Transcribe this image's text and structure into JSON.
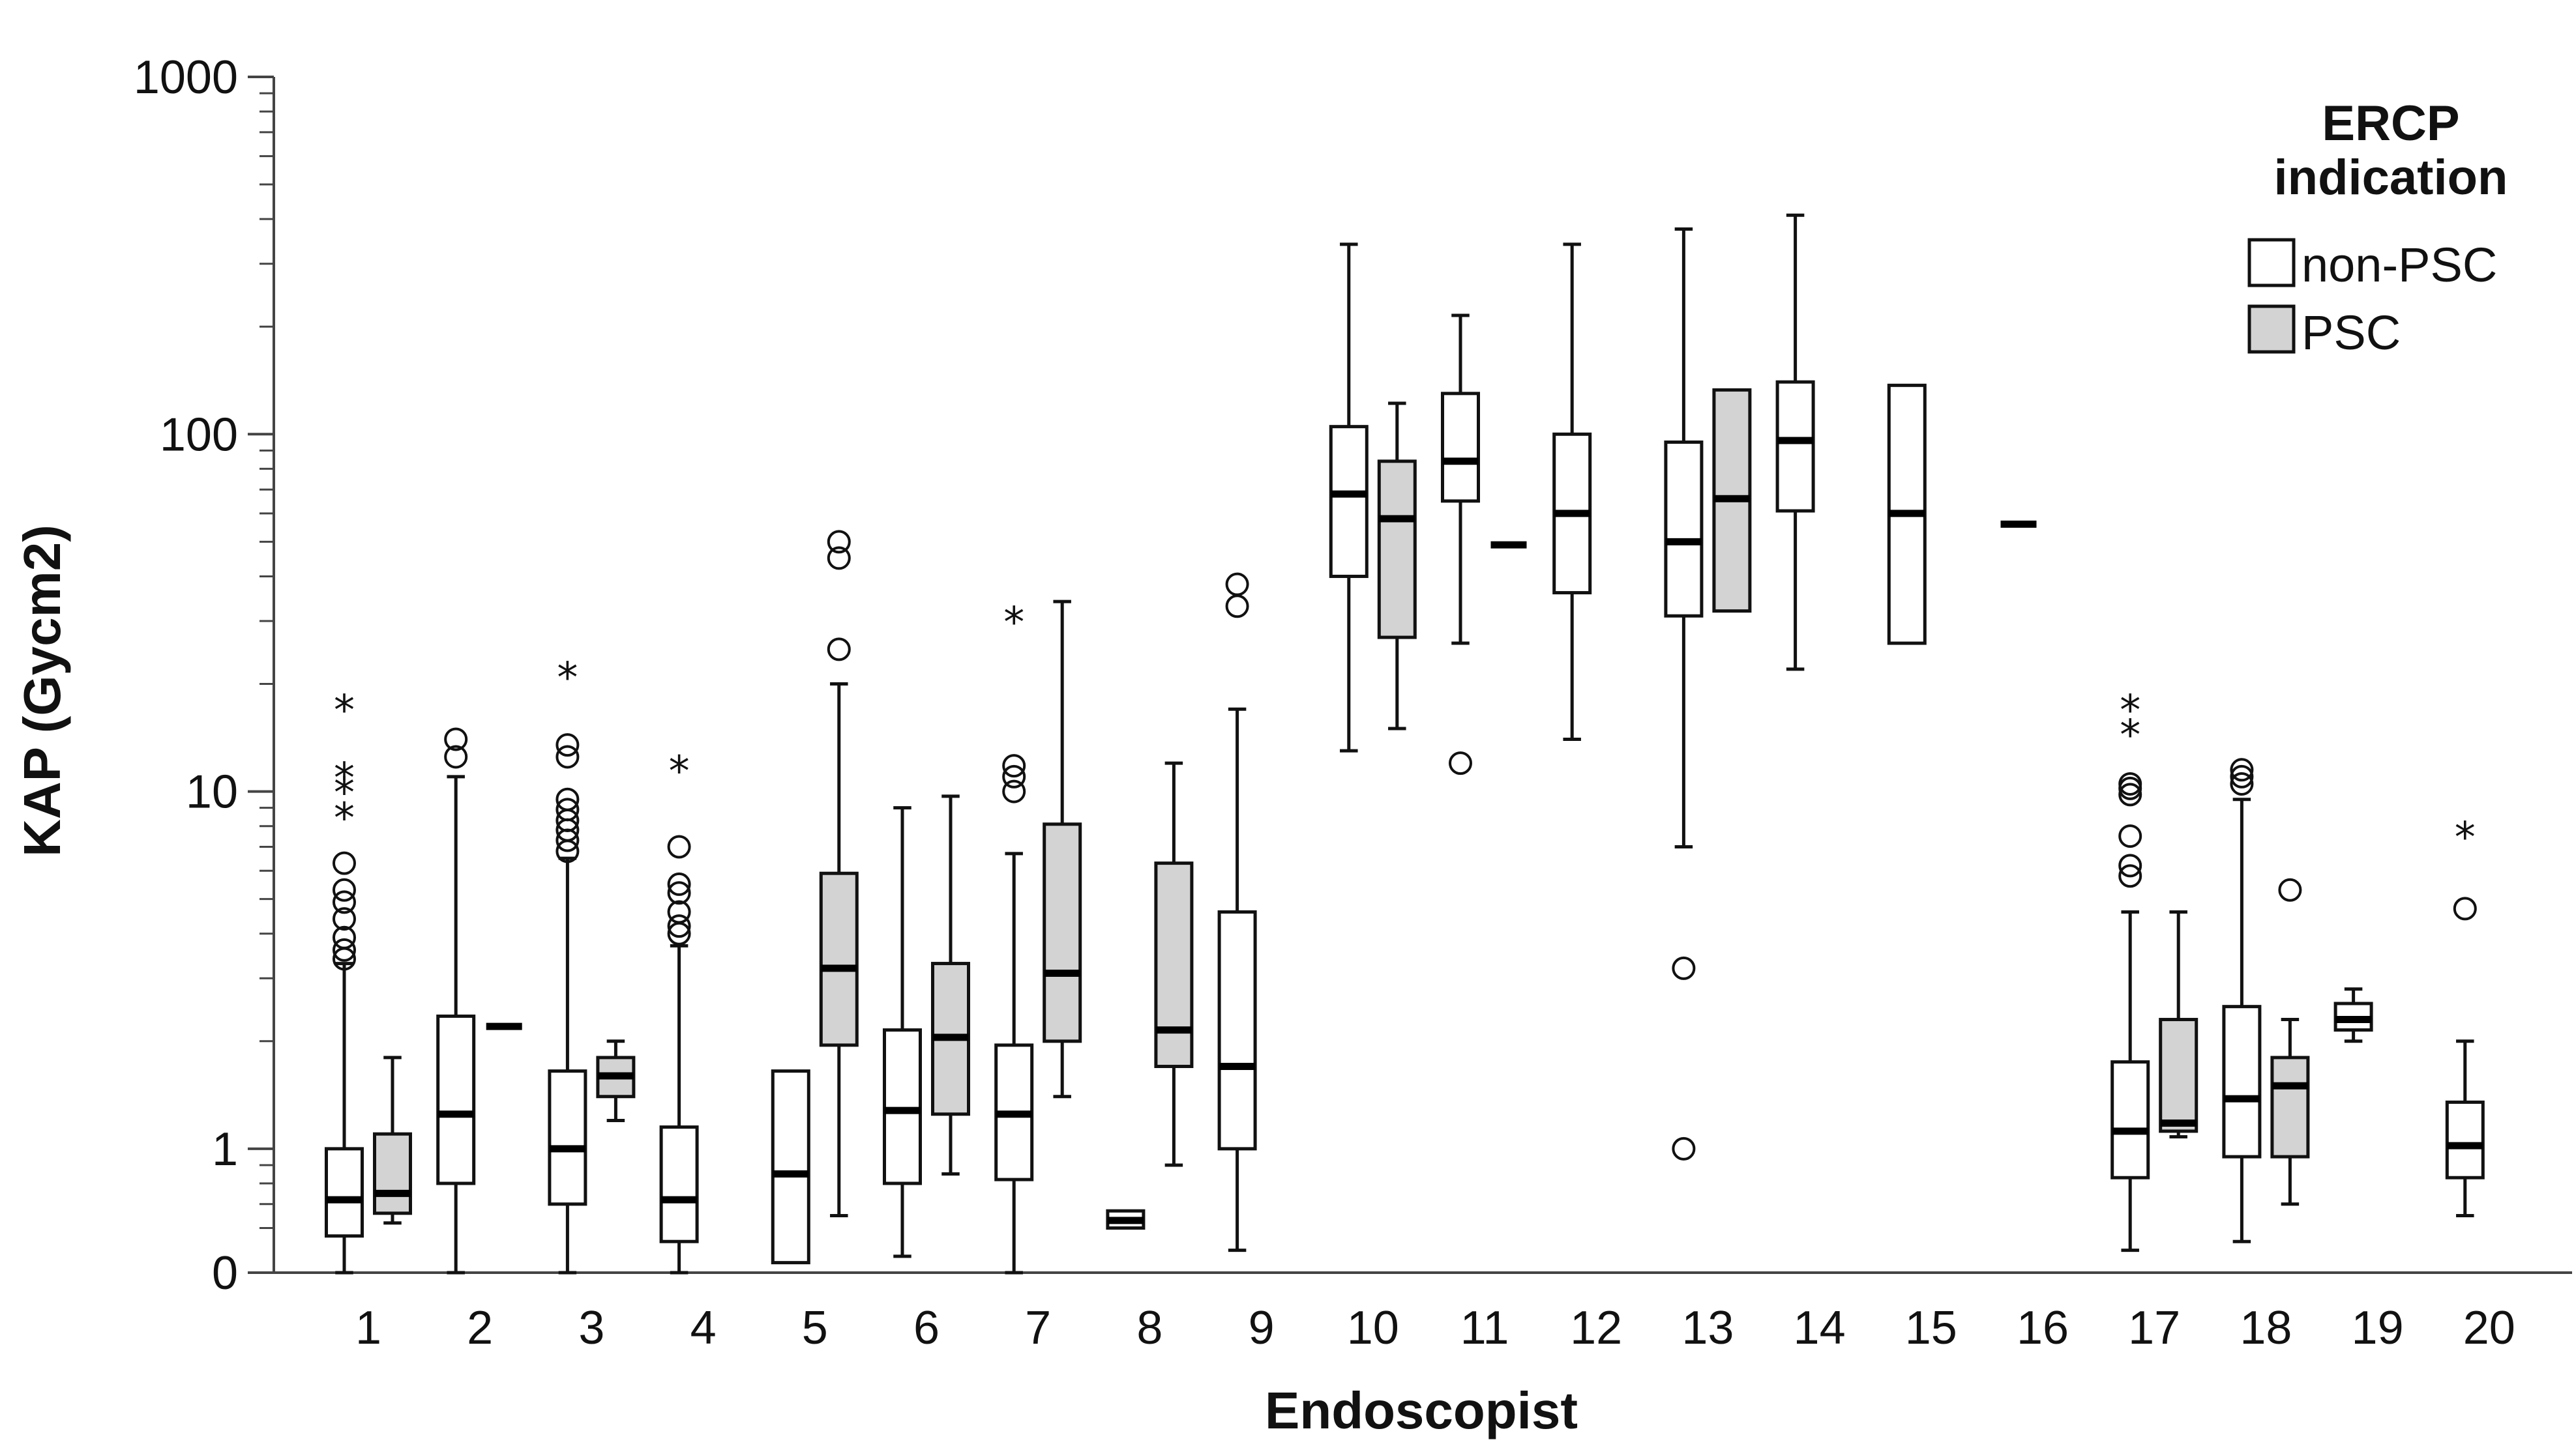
{
  "chart_data": {
    "type": "boxplot",
    "xlabel": "Endoscopist",
    "ylabel": "KAP (Gycm2)",
    "y_scale": "log",
    "ylim": [
      0.45,
      1000
    ],
    "y_ticks": [
      {
        "value": 0.45,
        "label": "0"
      },
      {
        "value": 1,
        "label": "1"
      },
      {
        "value": 10,
        "label": "10"
      },
      {
        "value": 100,
        "label": "100"
      },
      {
        "value": 1000,
        "label": "1000"
      }
    ],
    "categories": [
      "1",
      "2",
      "3",
      "4",
      "5",
      "6",
      "7",
      "8",
      "9",
      "10",
      "11",
      "12",
      "13",
      "14",
      "15",
      "16",
      "17",
      "18",
      "19",
      "20"
    ],
    "legend": {
      "title_line1": "ERCP",
      "title_line2": "indication",
      "placement": "top-right",
      "entries": [
        {
          "name": "non-PSC",
          "color": "#ffffff"
        },
        {
          "name": "PSC",
          "color": "#d3d3d3"
        }
      ]
    },
    "outlier_symbol": "○",
    "extreme_symbol": "*",
    "series": [
      {
        "name": "non-PSC",
        "color": "#ffffff",
        "boxes": [
          {
            "category": "1",
            "min": 0.45,
            "q1": 0.57,
            "median": 0.72,
            "q3": 1.0,
            "max": 3.3,
            "outliers": [
              3.4,
              3.6,
              3.9,
              4.4,
              4.9,
              5.3,
              6.3
            ],
            "extremes": [
              8.5,
              10,
              11,
              17
            ]
          },
          {
            "category": "2",
            "min": 0.45,
            "q1": 0.8,
            "median": 1.25,
            "q3": 2.35,
            "max": 11,
            "outliers": [
              12.5,
              14
            ],
            "extremes": []
          },
          {
            "category": "3",
            "min": 0.45,
            "q1": 0.7,
            "median": 1.0,
            "q3": 1.65,
            "max": 6.5,
            "outliers": [
              6.8,
              7.3,
              7.8,
              8.3,
              8.9,
              9.5,
              12.5,
              13.5
            ],
            "extremes": [
              21
            ]
          },
          {
            "category": "4",
            "min": 0.45,
            "q1": 0.55,
            "median": 0.72,
            "q3": 1.15,
            "max": 3.7,
            "outliers": [
              4.0,
              4.2,
              4.6,
              5.2,
              5.5,
              7.0
            ],
            "extremes": [
              11.5
            ]
          },
          {
            "category": "5",
            "min": 0.48,
            "q1": 0.48,
            "median": 0.85,
            "q3": 1.65,
            "max": 1.65,
            "outliers": [],
            "extremes": []
          },
          {
            "category": "6",
            "min": 0.5,
            "q1": 0.8,
            "median": 1.28,
            "q3": 2.15,
            "max": 9.0,
            "outliers": [],
            "extremes": []
          },
          {
            "category": "7",
            "min": 0.45,
            "q1": 0.82,
            "median": 1.25,
            "q3": 1.95,
            "max": 6.7,
            "outliers": [
              10,
              11,
              11.8
            ],
            "extremes": [
              30
            ]
          },
          {
            "category": "8",
            "min": 0.6,
            "q1": 0.6,
            "median": 0.63,
            "q3": 0.67,
            "max": 0.67,
            "outliers": [],
            "extremes": []
          },
          {
            "category": "9",
            "min": 0.52,
            "q1": 1.0,
            "median": 1.7,
            "q3": 4.6,
            "max": 17,
            "outliers": [
              33,
              38
            ],
            "extremes": []
          },
          {
            "category": "10",
            "min": 13,
            "q1": 40,
            "median": 68,
            "q3": 105,
            "max": 340,
            "outliers": [],
            "extremes": []
          },
          {
            "category": "11",
            "min": 26,
            "q1": 65,
            "median": 84,
            "q3": 130,
            "max": 215,
            "outliers": [
              12
            ],
            "extremes": []
          },
          {
            "category": "12",
            "min": 14,
            "q1": 36,
            "median": 60,
            "q3": 100,
            "max": 340,
            "outliers": [],
            "extremes": []
          },
          {
            "category": "13",
            "min": 7,
            "q1": 31,
            "median": 50,
            "q3": 95,
            "max": 375,
            "outliers": [
              1.0,
              3.2
            ],
            "extremes": []
          },
          {
            "category": "14",
            "min": 22,
            "q1": 61,
            "median": 96,
            "q3": 140,
            "max": 410,
            "outliers": [],
            "extremes": []
          },
          {
            "category": "15",
            "min": 26,
            "q1": 26,
            "median": 60,
            "q3": 137,
            "max": 137,
            "outliers": [],
            "extremes": []
          },
          {
            "category": "16",
            "min": 56,
            "q1": 56,
            "median": 56,
            "q3": 56,
            "max": 56,
            "outliers": [],
            "extremes": []
          },
          {
            "category": "17",
            "min": 0.52,
            "q1": 0.83,
            "median": 1.12,
            "q3": 1.75,
            "max": 4.6,
            "outliers": [
              5.8,
              6.2,
              7.5,
              9.8,
              10.2,
              10.5
            ],
            "extremes": [
              14.5,
              17
            ]
          },
          {
            "category": "18",
            "min": 0.55,
            "q1": 0.95,
            "median": 1.38,
            "q3": 2.5,
            "max": 9.5,
            "outliers": [
              10.5,
              11,
              11.5
            ],
            "extremes": []
          },
          {
            "category": "19",
            "min": 2.0,
            "q1": 2.15,
            "median": 2.3,
            "q3": 2.55,
            "max": 2.8,
            "outliers": [],
            "extremes": []
          },
          {
            "category": "20",
            "min": 0.65,
            "q1": 0.83,
            "median": 1.02,
            "q3": 1.35,
            "max": 2.0,
            "outliers": [
              4.7
            ],
            "extremes": [
              7.5
            ]
          }
        ]
      },
      {
        "name": "PSC",
        "color": "#d3d3d3",
        "boxes": [
          {
            "category": "1",
            "min": 0.62,
            "q1": 0.66,
            "median": 0.75,
            "q3": 1.1,
            "max": 1.8,
            "outliers": [],
            "extremes": []
          },
          {
            "category": "2",
            "min": 2.2,
            "q1": 2.2,
            "median": 2.2,
            "q3": 2.2,
            "max": 2.2,
            "outliers": [],
            "extremes": []
          },
          {
            "category": "3",
            "min": 1.2,
            "q1": 1.4,
            "median": 1.6,
            "q3": 1.8,
            "max": 2.0,
            "outliers": [],
            "extremes": []
          },
          {
            "category": "5",
            "min": 0.65,
            "q1": 1.95,
            "median": 3.2,
            "q3": 5.9,
            "max": 20,
            "outliers": [
              25,
              45,
              50
            ],
            "extremes": []
          },
          {
            "category": "6",
            "min": 0.85,
            "q1": 1.25,
            "median": 2.05,
            "q3": 3.3,
            "max": 9.7,
            "outliers": [],
            "extremes": []
          },
          {
            "category": "7",
            "min": 1.4,
            "q1": 2.0,
            "median": 3.1,
            "q3": 8.1,
            "max": 34,
            "outliers": [],
            "extremes": []
          },
          {
            "category": "8",
            "min": 0.9,
            "q1": 1.7,
            "median": 2.15,
            "q3": 6.3,
            "max": 12,
            "outliers": [],
            "extremes": []
          },
          {
            "category": "10",
            "min": 15,
            "q1": 27,
            "median": 58,
            "q3": 84,
            "max": 122,
            "outliers": [],
            "extremes": []
          },
          {
            "category": "11",
            "min": 49,
            "q1": 49,
            "median": 49,
            "q3": 49,
            "max": 49,
            "outliers": [],
            "extremes": []
          },
          {
            "category": "13",
            "min": 32,
            "q1": 32,
            "median": 66,
            "q3": 133,
            "max": 133,
            "outliers": [],
            "extremes": []
          },
          {
            "category": "17",
            "min": 1.08,
            "q1": 1.12,
            "median": 1.18,
            "q3": 2.3,
            "max": 4.6,
            "outliers": [],
            "extremes": []
          },
          {
            "category": "18",
            "min": 0.7,
            "q1": 0.95,
            "median": 1.5,
            "q3": 1.8,
            "max": 2.3,
            "outliers": [
              5.3
            ],
            "extremes": []
          }
        ]
      }
    ]
  }
}
